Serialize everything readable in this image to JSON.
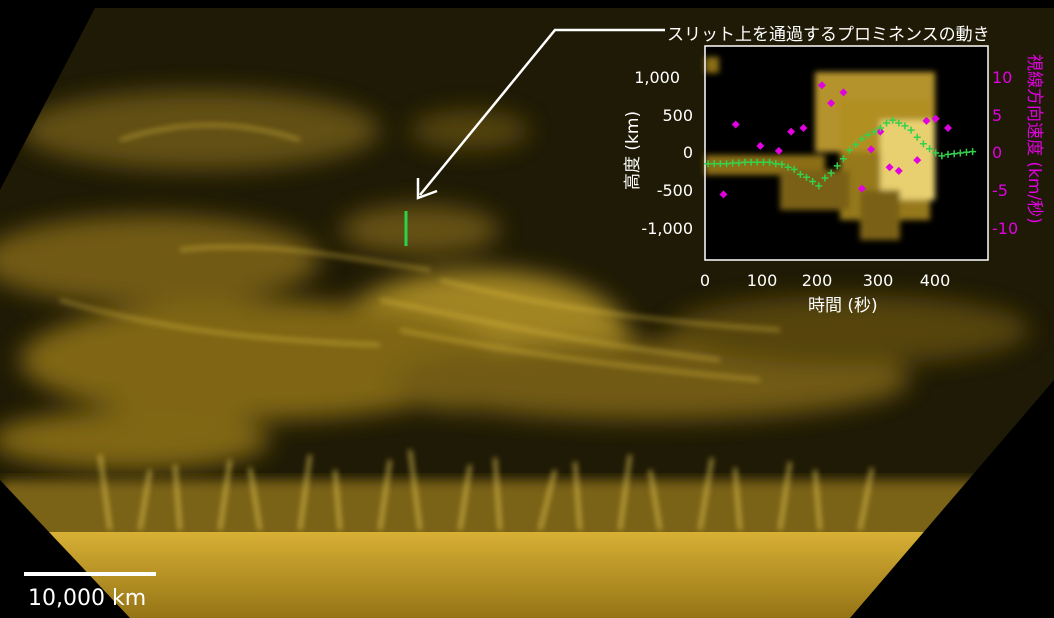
{
  "annotation": {
    "text": "スリット上を通過するプロミネンスの動き"
  },
  "scale": {
    "label": "10,000 km",
    "length_km": 10000
  },
  "colors": {
    "background": "#000000",
    "sun": "#c9a21a",
    "slit": "#2bd34a",
    "velocity_markers": "#e000e0",
    "height_markers": "#32d24c",
    "annotation": "#ffffff"
  },
  "inset": {
    "xlabel": "時間 (秒)",
    "ylabel_left": "高度 (km)",
    "ylabel_right": "視線方向速度 (km/秒)",
    "x_ticks": [
      "0",
      "100",
      "200",
      "300",
      "400"
    ],
    "y_ticks_left": [
      "1,000",
      "500",
      "0",
      "-500",
      "-1,000"
    ],
    "y_ticks_right": [
      "10",
      "5",
      "0",
      "-5",
      "-10"
    ]
  },
  "chart_data": {
    "type": "scatter",
    "xlim": [
      0,
      460
    ],
    "ylim_left": [
      -1500,
      1500
    ],
    "ylim_right": [
      -15,
      15
    ],
    "series": [
      {
        "axis": "right",
        "marker": "diamond",
        "color": "#e000e0",
        "x": [
          30,
          50,
          90,
          120,
          140,
          160,
          190,
          205,
          225,
          255,
          270,
          285,
          300,
          315,
          345,
          360,
          375,
          395
        ],
        "y": [
          -5.8,
          4,
          1,
          0.3,
          3,
          3.5,
          9.5,
          7,
          8.5,
          -5,
          0.5,
          3,
          -2,
          -2.5,
          -1,
          4.5,
          4.8,
          3.5
        ]
      },
      {
        "axis": "left",
        "marker": "plus",
        "color": "#32d24c",
        "x": [
          5,
          15,
          25,
          35,
          45,
          55,
          65,
          75,
          85,
          95,
          105,
          115,
          125,
          135,
          145,
          155,
          165,
          175,
          185,
          195,
          205,
          215,
          225,
          235,
          245,
          255,
          265,
          275,
          285,
          295,
          305,
          315,
          325,
          335,
          345,
          355,
          365,
          375,
          385,
          395,
          405,
          415,
          425,
          435
        ],
        "y": [
          -150,
          -150,
          -150,
          -150,
          -140,
          -140,
          -130,
          -130,
          -130,
          -130,
          -130,
          -150,
          -160,
          -200,
          -230,
          -300,
          -340,
          -400,
          -460,
          -350,
          -280,
          -180,
          -80,
          40,
          120,
          200,
          250,
          300,
          350,
          420,
          460,
          420,
          380,
          320,
          220,
          130,
          60,
          0,
          -40,
          -20,
          -10,
          0,
          10,
          20
        ]
      }
    ]
  }
}
